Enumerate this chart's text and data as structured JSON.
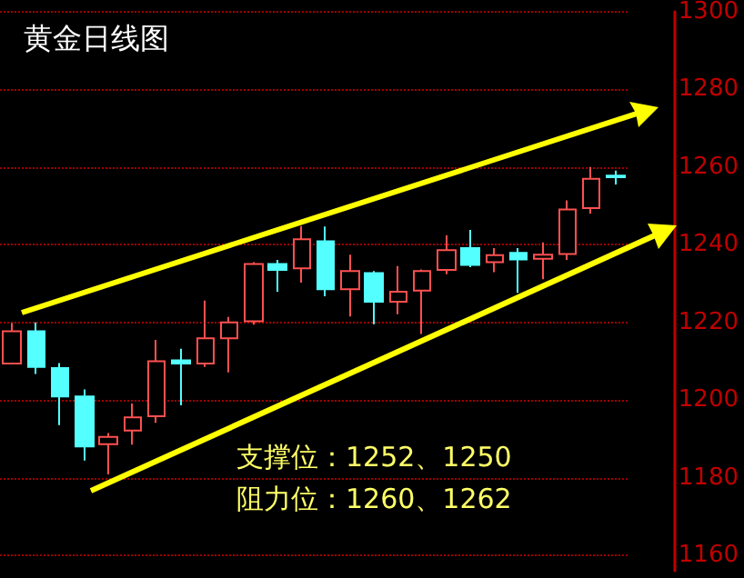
{
  "chart_data": {
    "type": "candlestick",
    "title": "黄金日线图",
    "annotations": [
      "支撑位：1252、1250",
      "阻力位：1260、1262"
    ],
    "categories": [
      null,
      null,
      null,
      null,
      null,
      null,
      null,
      null,
      null,
      null,
      null,
      null,
      null,
      null,
      null,
      null,
      null,
      null,
      null,
      null,
      null,
      null,
      null,
      null,
      null,
      null
    ],
    "ohlc": [
      [
        1209.4,
        1219.8,
        1209.4,
        1217.7
      ],
      [
        1217.7,
        1220,
        1206.7,
        1208.5
      ],
      [
        1208.2,
        1209.5,
        1193.5,
        1200.9
      ],
      [
        1200.9,
        1202.7,
        1184.4,
        1188
      ],
      [
        1188.6,
        1191.5,
        1180.8,
        1190.5
      ],
      [
        1192.1,
        1199.1,
        1188.5,
        1195.5
      ],
      [
        1195.8,
        1215.5,
        1194.1,
        1210
      ],
      [
        1210.2,
        1213.2,
        1198.6,
        1209.4
      ],
      [
        1209.4,
        1225.6,
        1208.5,
        1215.9
      ],
      [
        1215.9,
        1221.4,
        1207.1,
        1220
      ],
      [
        1220.3,
        1235.5,
        1219.4,
        1235
      ],
      [
        1235,
        1236.1,
        1227.9,
        1233.5
      ],
      [
        1233.9,
        1244.8,
        1230.2,
        1241.4
      ],
      [
        1240.9,
        1244.7,
        1226.7,
        1228.5
      ],
      [
        1228.5,
        1237.4,
        1221.5,
        1233.2
      ],
      [
        1232.7,
        1233.2,
        1219.5,
        1225.3
      ],
      [
        1225.3,
        1234.5,
        1222.1,
        1227.9
      ],
      [
        1228.2,
        1233.6,
        1217,
        1233.2
      ],
      [
        1233.5,
        1242.4,
        1232.4,
        1238.6
      ],
      [
        1239.1,
        1243.8,
        1234.2,
        1234.8
      ],
      [
        1235.5,
        1239.1,
        1232.9,
        1237.3
      ],
      [
        1237.9,
        1239.1,
        1227.6,
        1236.2
      ],
      [
        1236.4,
        1240.6,
        1231.1,
        1237.4
      ],
      [
        1237.6,
        1251.4,
        1236.1,
        1249.1
      ],
      [
        1249.4,
        1260,
        1248,
        1257
      ],
      [
        1257.8,
        1259.1,
        1255.5,
        1257.4
      ]
    ],
    "ylim": [
      1156,
      1300
    ],
    "yticks": [
      1160,
      1180,
      1200,
      1220,
      1240,
      1260,
      1280,
      1300
    ],
    "grid": "y",
    "tick_labels": "y"
  }
}
